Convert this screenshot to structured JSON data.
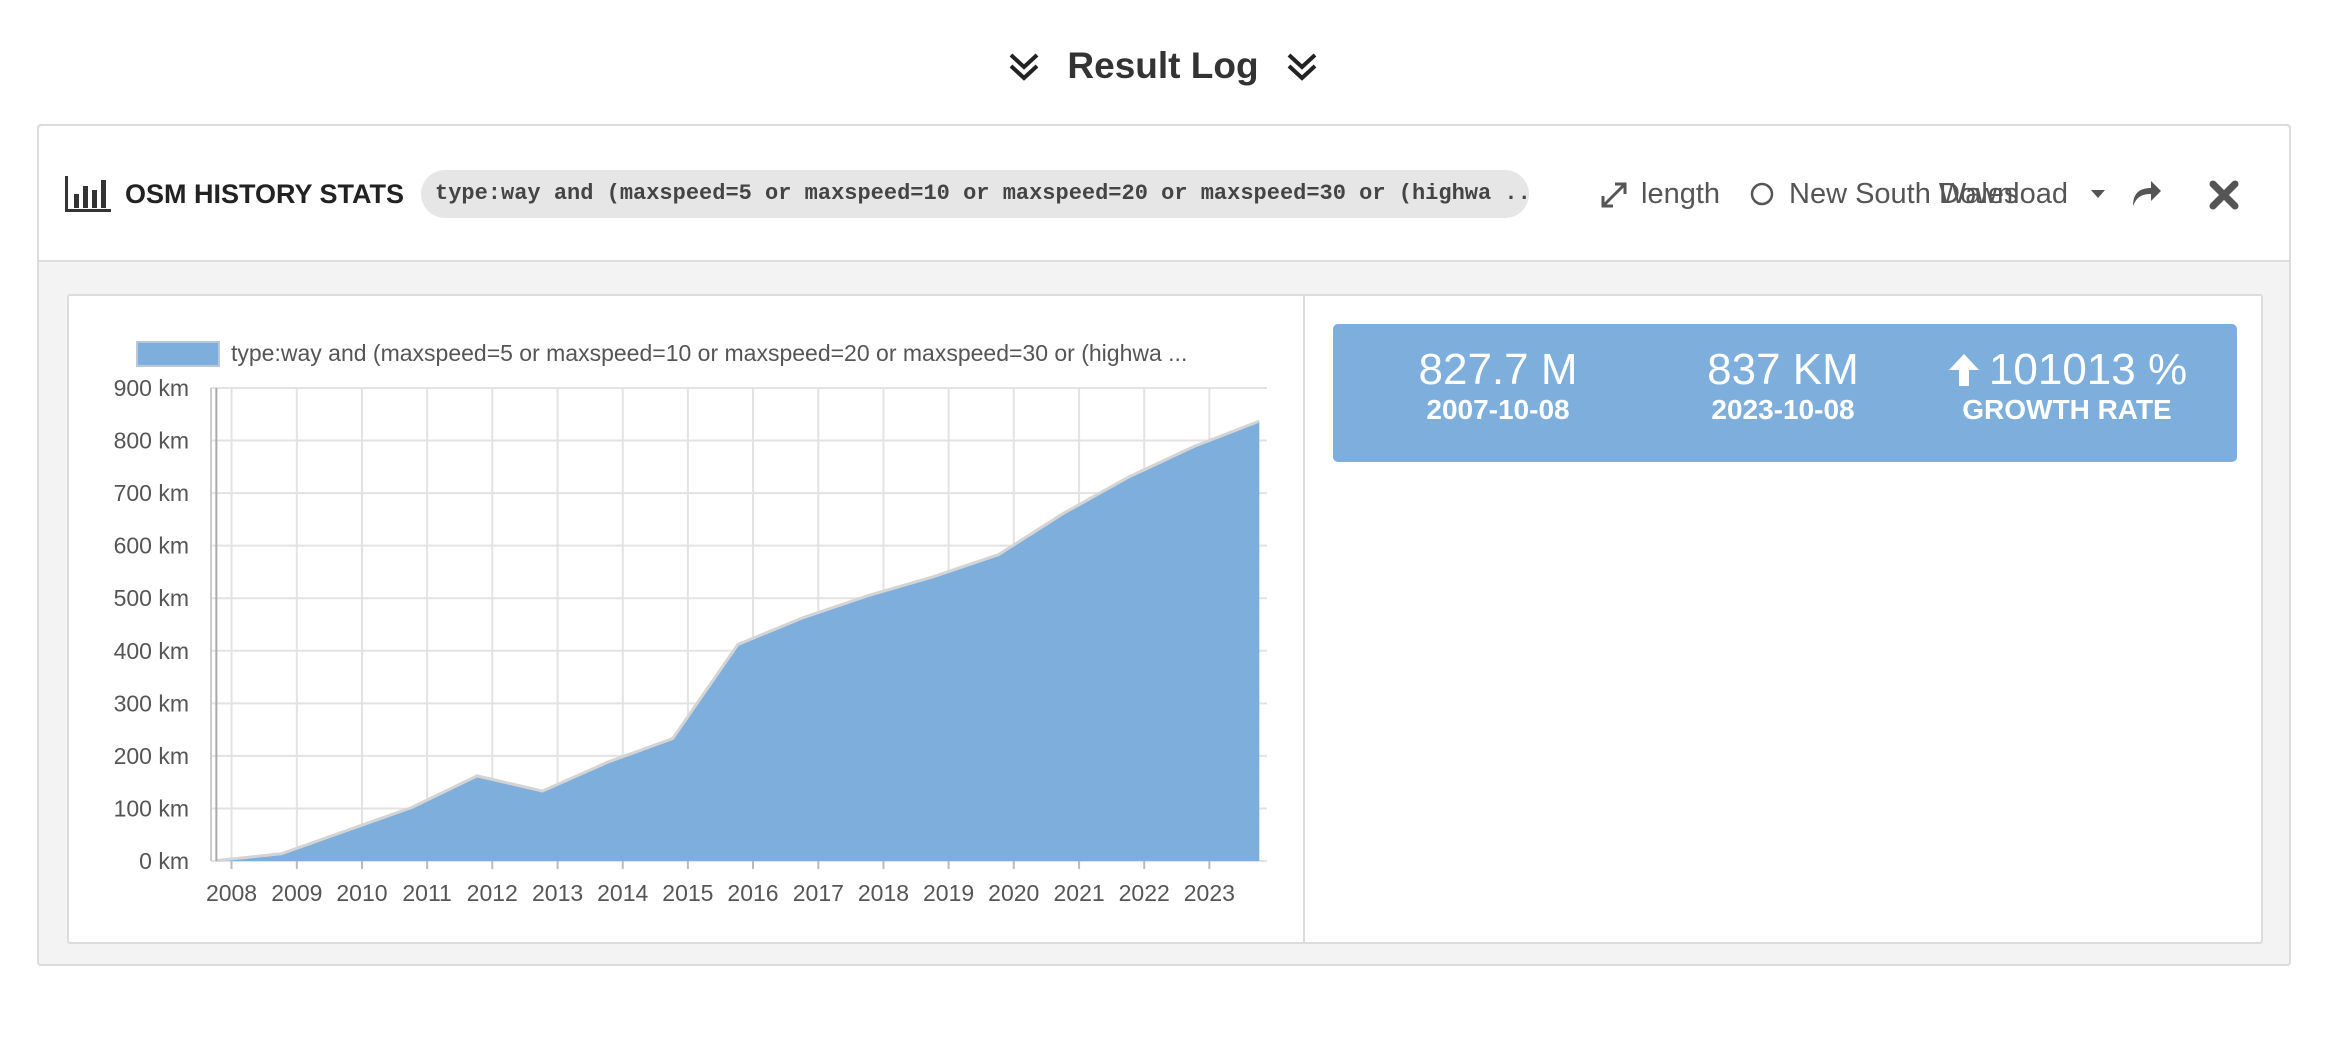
{
  "header": {
    "title": "Result Log"
  },
  "toolbar": {
    "title": "OSM HISTORY STATS",
    "query": "type:way and (maxspeed=5 or maxspeed=10 or maxspeed=20 or maxspeed=30 or (highwa ...",
    "measure_label": "length",
    "region_label": "New South Wales",
    "download_label": "Download"
  },
  "stats": {
    "start_value": "827.7 M",
    "start_date": "2007-10-08",
    "end_value": "837 KM",
    "end_date": "2023-10-08",
    "growth_value": "101013 %",
    "growth_label": "GROWTH RATE"
  },
  "colors": {
    "area": "#7daedc",
    "stats_bg": "#7daedc",
    "accent": "#7daedc"
  },
  "chart_data": {
    "type": "area",
    "legend": "type:way and (maxspeed=5 or maxspeed=10 or maxspeed=20 or maxspeed=30 or (highwa ...",
    "x": [
      "2007-10-08",
      "2008-10-08",
      "2009-10-08",
      "2010-10-08",
      "2011-10-08",
      "2012-10-08",
      "2013-10-08",
      "2014-10-08",
      "2015-10-08",
      "2016-10-08",
      "2017-10-08",
      "2018-10-08",
      "2019-10-08",
      "2020-10-08",
      "2021-10-08",
      "2022-10-08",
      "2023-10-08"
    ],
    "values": [
      0.83,
      14,
      58,
      102,
      162,
      133,
      188,
      233,
      412,
      463,
      505,
      541,
      583,
      662,
      731,
      789,
      837
    ],
    "xticks": [
      "2008",
      "2009",
      "2010",
      "2011",
      "2012",
      "2013",
      "2014",
      "2015",
      "2016",
      "2017",
      "2018",
      "2019",
      "2020",
      "2021",
      "2022",
      "2023"
    ],
    "yticks": [
      "0 km",
      "100 km",
      "200 km",
      "300 km",
      "400 km",
      "500 km",
      "600 km",
      "700 km",
      "800 km",
      "900 km"
    ],
    "ylim": [
      0,
      900
    ],
    "xlim": [
      "2007-09-08",
      "2023-11-20"
    ],
    "grid": true
  }
}
